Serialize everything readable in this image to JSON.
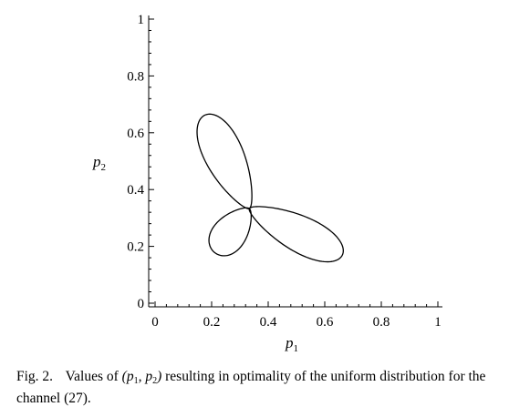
{
  "chart_data": {
    "type": "line",
    "xlabel": "p",
    "xlabel_sub": "1",
    "ylabel": "p",
    "ylabel_sub": "2",
    "xlim": [
      0,
      1
    ],
    "ylim": [
      0,
      1
    ],
    "xticks": [
      "0",
      "0.2",
      "0.4",
      "0.6",
      "0.8",
      "1"
    ],
    "yticks": [
      "0",
      "0.2",
      "0.4",
      "0.6",
      "0.8",
      "1"
    ],
    "grid": false,
    "series": [
      {
        "center": [
          0.3333,
          0.3333
        ],
        "lobes": [
          {
            "tip": [
              0.662,
              0.169
            ]
          },
          {
            "tip": [
              0.176,
              0.662
            ]
          },
          {
            "tip": [
              0.211,
              0.178
            ]
          }
        ],
        "lobe_width": [
          0.42,
          0.45,
          0.72
        ]
      }
    ]
  },
  "caption": {
    "label": "Fig. 2.",
    "text_before": "Values of",
    "math": "(p1, p2)",
    "text_after": "resulting in optimality of the uniform distribution for the channel (27)."
  }
}
